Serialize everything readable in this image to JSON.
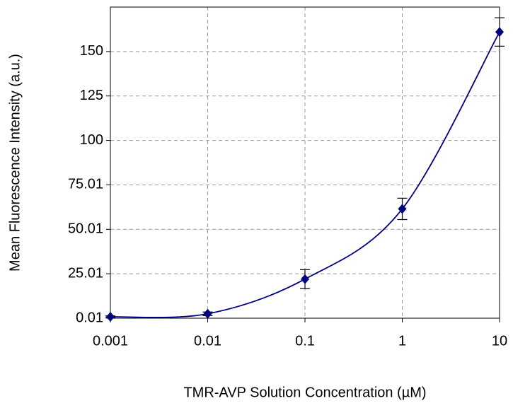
{
  "chart_data": {
    "type": "line",
    "x_label": "TMR-AVP Solution Concentration (µM)",
    "y_label": "Mean Fluorescence Intensity (a.u.)",
    "x_scale": "log",
    "xlim": [
      0.001,
      10
    ],
    "xticks": [
      0.001,
      0.01,
      0.1,
      1,
      10
    ],
    "ylim": [
      0.01,
      175
    ],
    "yticks": [
      0.01,
      25.01,
      50.01,
      75.01,
      100,
      125,
      150
    ],
    "grid": true,
    "x": [
      0.001,
      0.01,
      0.1,
      1,
      10
    ],
    "series": [
      {
        "color": "#000080",
        "values": [
          0.8,
          2.5,
          22,
          61.5,
          161
        ],
        "errors": [
          0.5,
          1,
          5.3,
          6,
          8
        ]
      }
    ]
  }
}
